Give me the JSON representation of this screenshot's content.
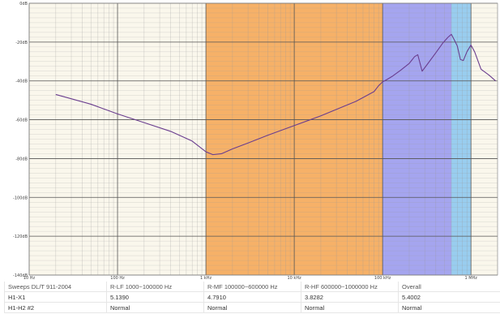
{
  "chart_data": {
    "type": "line",
    "title": "",
    "xscale": "log",
    "xlim": [
      10,
      2000000
    ],
    "ylim": [
      -140,
      0
    ],
    "x_ticks": [
      {
        "value": 10,
        "label": "10 Hz"
      },
      {
        "value": 100,
        "label": "100 Hz"
      },
      {
        "value": 1000,
        "label": "1 kHz"
      },
      {
        "value": 10000,
        "label": "10 kHz"
      },
      {
        "value": 100000,
        "label": "100 kHz"
      },
      {
        "value": 1000000,
        "label": "1 MHz"
      }
    ],
    "y_ticks": [
      {
        "value": 0,
        "label": "0dB"
      },
      {
        "value": -20,
        "label": "-20dB"
      },
      {
        "value": -40,
        "label": "-40dB"
      },
      {
        "value": -60,
        "label": "-60dB"
      },
      {
        "value": -80,
        "label": "-80dB"
      },
      {
        "value": -100,
        "label": "-100dB"
      },
      {
        "value": -120,
        "label": "-120dB"
      },
      {
        "value": -140,
        "label": "-140dB"
      }
    ],
    "grid": true,
    "bands": [
      {
        "from": 1000,
        "to": 100000,
        "color": "#f5a85a"
      },
      {
        "from": 100000,
        "to": 600000,
        "color": "#9b9bf0"
      },
      {
        "from": 600000,
        "to": 1000000,
        "color": "#8ec8f0"
      }
    ],
    "series": [
      {
        "color": "#6a3d8f",
        "x": [
          20,
          50,
          100,
          200,
          400,
          700,
          1000,
          1200,
          1500,
          2000,
          3000,
          5000,
          10000,
          20000,
          50000,
          80000,
          90000,
          100000,
          110000,
          130000,
          160000,
          200000,
          230000,
          250000,
          280000,
          320000,
          400000,
          480000,
          550000,
          600000,
          650000,
          700000,
          760000,
          820000,
          900000,
          1000000,
          1100000,
          1300000,
          1600000,
          1900000
        ],
        "y": [
          -47,
          -52,
          -57,
          -61.5,
          -66,
          -71,
          -76.5,
          -78,
          -77.5,
          -75,
          -72,
          -68,
          -63,
          -58,
          -50.5,
          -45.5,
          -42.5,
          -40.5,
          -39.5,
          -37.5,
          -34.5,
          -31,
          -27.5,
          -26.5,
          -35,
          -31.5,
          -25.5,
          -20.5,
          -17.5,
          -16,
          -19,
          -22,
          -29,
          -29.5,
          -25,
          -21.5,
          -25,
          -34,
          -37,
          -40
        ]
      }
    ]
  },
  "table": {
    "header": [
      "Sweeps DL/T 911-2004",
      "R-LF 1000~100000 Hz",
      "R-MF 100000~600000 Hz",
      "R-HF 600000~1000000 Hz",
      "Overall"
    ],
    "rows": [
      [
        "H1-X1",
        "5.1390",
        "4.7910",
        "3.8282",
        "5.4002"
      ],
      [
        "H1-H2 #2",
        "Normal",
        "Normal",
        "Normal",
        "Normal"
      ]
    ]
  }
}
